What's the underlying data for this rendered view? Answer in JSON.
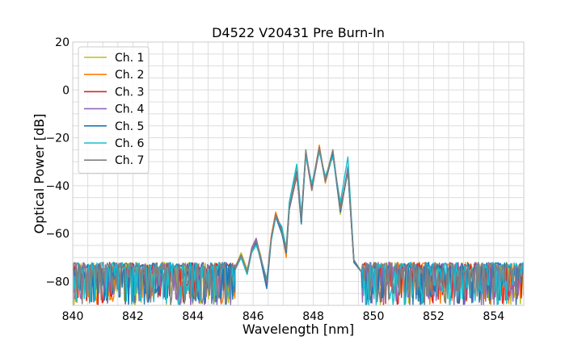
{
  "chart_data": {
    "type": "line",
    "title": "D4522 V20431 Pre Burn-In",
    "xlabel": "Wavelength [nm]",
    "ylabel": "Optical Power [dB]",
    "xlim": [
      840,
      855
    ],
    "ylim": [
      -90,
      20
    ],
    "xticks": [
      840,
      842,
      844,
      846,
      848,
      850,
      852,
      854
    ],
    "yticks": [
      -80,
      -60,
      -40,
      -20,
      0,
      20
    ],
    "x_minor_step": 0.5,
    "y_minor_step": 5,
    "grid": true,
    "legend_position": "top-left",
    "noise_floor_db": -75,
    "noise_depth_db": 15,
    "series": [
      {
        "name": "Ch. 1",
        "color": "#bcbd22",
        "x": [
          845.4,
          845.6,
          845.8,
          845.95,
          846.1,
          846.25,
          846.45,
          846.6,
          846.75,
          846.95,
          847.1,
          847.2,
          847.45,
          847.6,
          847.75,
          847.95,
          848.2,
          848.4,
          848.65,
          848.9,
          849.15,
          849.35,
          849.6
        ],
        "y": [
          -74,
          -68,
          -75,
          -67,
          -63,
          -69,
          -82,
          -62,
          -52,
          -58,
          -66,
          -48,
          -33,
          -56,
          -27,
          -40,
          -24,
          -37,
          -25,
          -52,
          -33,
          -72,
          -76
        ]
      },
      {
        "name": "Ch. 2",
        "color": "#ff7f0e",
        "x": [
          845.4,
          845.6,
          845.8,
          845.95,
          846.1,
          846.25,
          846.45,
          846.6,
          846.75,
          846.95,
          847.1,
          847.2,
          847.45,
          847.6,
          847.75,
          847.95,
          848.2,
          848.4,
          848.65,
          848.9,
          849.15,
          849.35,
          849.6
        ],
        "y": [
          -75,
          -69,
          -76,
          -66,
          -62,
          -70,
          -80,
          -61,
          -51,
          -59,
          -70,
          -49,
          -34,
          -54,
          -26,
          -41,
          -23,
          -39,
          -26,
          -50,
          -33,
          -71,
          -76
        ]
      },
      {
        "name": "Ch. 3",
        "color": "#d62728",
        "x": [
          845.4,
          845.6,
          845.8,
          845.95,
          846.1,
          846.25,
          846.45,
          846.6,
          846.75,
          846.95,
          847.1,
          847.2,
          847.45,
          847.6,
          847.75,
          847.95,
          848.2,
          848.4,
          848.65,
          848.9,
          849.15,
          849.35,
          849.6
        ],
        "y": [
          -75,
          -69,
          -77,
          -67,
          -63,
          -71,
          -80,
          -62,
          -52,
          -58,
          -67,
          -50,
          -36,
          -53,
          -27,
          -42,
          -25,
          -38,
          -27,
          -49,
          -34,
          -72,
          -76
        ]
      },
      {
        "name": "Ch. 4",
        "color": "#9467bd",
        "x": [
          845.4,
          845.6,
          845.8,
          845.95,
          846.1,
          846.25,
          846.45,
          846.6,
          846.75,
          846.95,
          847.1,
          847.2,
          847.45,
          847.6,
          847.75,
          847.95,
          848.2,
          848.4,
          848.65,
          848.9,
          849.15,
          849.35,
          849.6
        ],
        "y": [
          -74,
          -69,
          -76,
          -66,
          -62,
          -70,
          -81,
          -62,
          -53,
          -59,
          -68,
          -49,
          -35,
          -55,
          -26,
          -40,
          -24,
          -38,
          -26,
          -51,
          -32,
          -71,
          -76
        ]
      },
      {
        "name": "Ch. 5",
        "color": "#1f77b4",
        "x": [
          845.4,
          845.6,
          845.8,
          845.95,
          846.1,
          846.25,
          846.45,
          846.6,
          846.75,
          846.95,
          847.1,
          847.2,
          847.45,
          847.6,
          847.75,
          847.95,
          848.2,
          848.4,
          848.65,
          848.9,
          849.15,
          849.35,
          849.6
        ],
        "y": [
          -75,
          -70,
          -77,
          -67,
          -64,
          -71,
          -83,
          -63,
          -53,
          -60,
          -68,
          -50,
          -34,
          -56,
          -27,
          -41,
          -25,
          -38,
          -27,
          -51,
          -34,
          -72,
          -76
        ]
      },
      {
        "name": "Ch. 6",
        "color": "#17becf",
        "x": [
          845.4,
          845.6,
          845.8,
          845.95,
          846.1,
          846.25,
          846.45,
          846.6,
          846.75,
          846.95,
          847.1,
          847.2,
          847.45,
          847.6,
          847.75,
          847.95,
          848.2,
          848.4,
          848.65,
          848.9,
          849.15,
          849.35,
          849.6
        ],
        "y": [
          -75,
          -70,
          -77,
          -68,
          -65,
          -70,
          -79,
          -63,
          -53,
          -57,
          -66,
          -47,
          -31,
          -52,
          -28,
          -39,
          -26,
          -36,
          -28,
          -47,
          -28,
          -71,
          -76
        ]
      },
      {
        "name": "Ch. 7",
        "color": "#7f7f7f",
        "x": [
          845.4,
          845.6,
          845.8,
          845.95,
          846.1,
          846.25,
          846.45,
          846.6,
          846.75,
          846.95,
          847.1,
          847.2,
          847.45,
          847.6,
          847.75,
          847.95,
          848.2,
          848.4,
          848.65,
          848.9,
          849.15,
          849.35,
          849.6
        ],
        "y": [
          -75,
          -69,
          -76,
          -67,
          -63,
          -70,
          -80,
          -62,
          -52,
          -59,
          -67,
          -49,
          -35,
          -54,
          -25,
          -42,
          -24,
          -38,
          -25,
          -50,
          -33,
          -71,
          -76
        ]
      }
    ]
  }
}
